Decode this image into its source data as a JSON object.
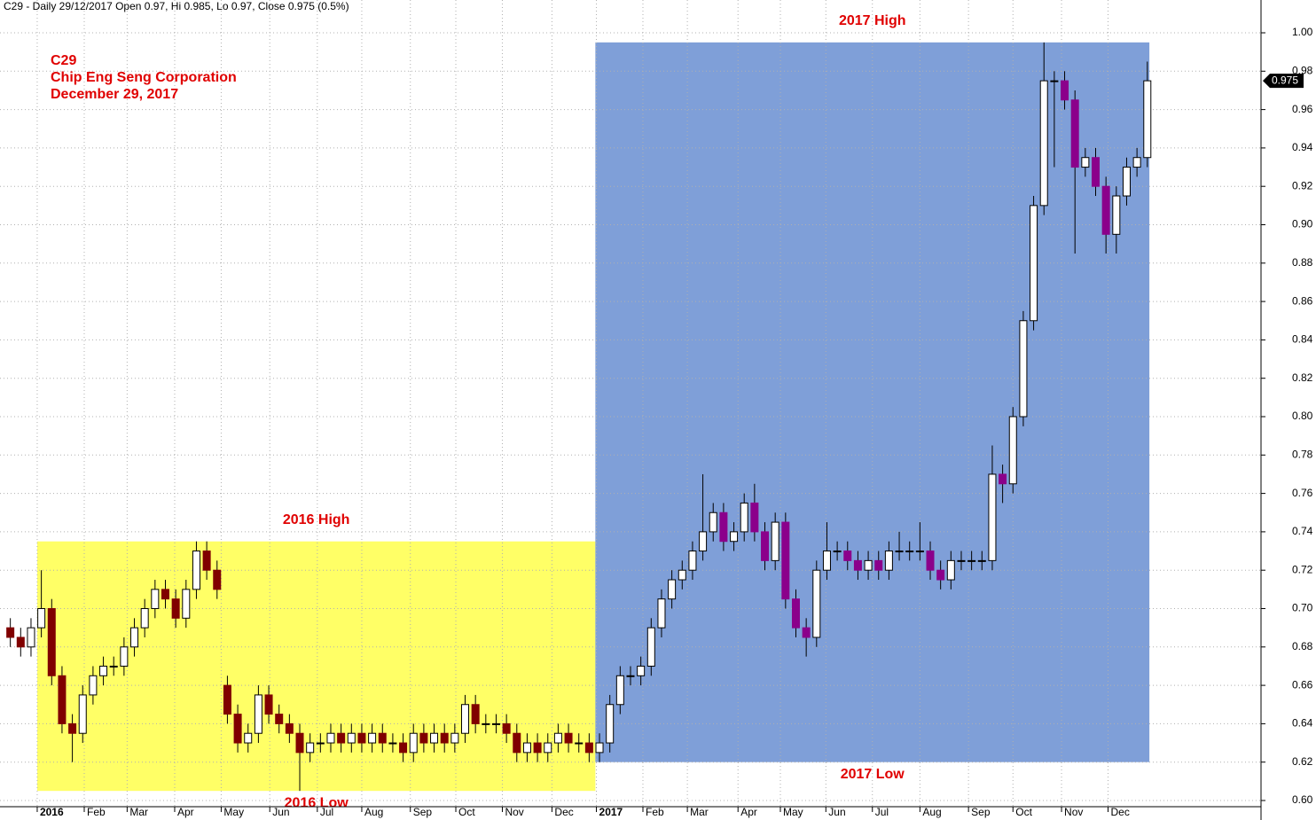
{
  "header": "C29 - Daily 29/12/2017 Open 0.97, Hi 0.985, Lo 0.97, Close 0.975 (0.5%)",
  "chart_data": {
    "type": "candlestick",
    "title_lines": [
      "C29",
      "Chip Eng Seng Corporation",
      "December 29, 2017"
    ],
    "xlim": [
      0,
      122
    ],
    "xticks": [
      {
        "value": 3.6,
        "label": "2016",
        "bold": true
      },
      {
        "value": 8.15,
        "label": "Feb"
      },
      {
        "value": 12.3,
        "label": "Mar"
      },
      {
        "value": 16.9,
        "label": "Apr"
      },
      {
        "value": 21.4,
        "label": "May"
      },
      {
        "value": 26.1,
        "label": "Jun"
      },
      {
        "value": 30.7,
        "label": "Jul"
      },
      {
        "value": 35,
        "label": "Aug"
      },
      {
        "value": 39.7,
        "label": "Sep"
      },
      {
        "value": 44.1,
        "label": "Oct"
      },
      {
        "value": 48.6,
        "label": "Nov"
      },
      {
        "value": 53.4,
        "label": "Dec"
      },
      {
        "value": 57.7,
        "label": "2017",
        "bold": true
      },
      {
        "value": 62.2,
        "label": "Feb"
      },
      {
        "value": 66.5,
        "label": "Mar"
      },
      {
        "value": 71.4,
        "label": "Apr"
      },
      {
        "value": 75.5,
        "label": "May"
      },
      {
        "value": 79.9,
        "label": "Jun"
      },
      {
        "value": 84.4,
        "label": "Jul"
      },
      {
        "value": 89,
        "label": "Aug"
      },
      {
        "value": 93.7,
        "label": "Sep"
      },
      {
        "value": 98,
        "label": "Oct"
      },
      {
        "value": 102.7,
        "label": "Nov"
      },
      {
        "value": 107.2,
        "label": "Dec"
      }
    ],
    "ylim": [
      0.6,
      1.0
    ],
    "yticks": [
      {
        "value": 0.6,
        "label": "0.60"
      },
      0.62,
      0.64,
      0.66,
      0.68,
      {
        "value": 0.7,
        "label": "0.70"
      },
      0.72,
      0.74,
      0.76,
      0.78,
      {
        "value": 0.8,
        "label": "0.80"
      },
      0.82,
      0.84,
      0.86,
      0.88,
      {
        "value": 0.9,
        "label": "0.90"
      },
      0.92,
      0.94,
      0.96,
      0.98,
      {
        "value": 1.0,
        "label": "1.00"
      }
    ],
    "grid": true,
    "up_color": "#ffffff",
    "series": [
      {
        "color": "#800000",
        "open": [
          0.69,
          0.685,
          0.68,
          0.69,
          0.7,
          0.665,
          0.64,
          0.635,
          0.655,
          0.665,
          0.67,
          0.67,
          0.68,
          0.69,
          0.7,
          0.71,
          0.705,
          0.695,
          0.71,
          0.73,
          0.72,
          0.66,
          0.645,
          0.63,
          0.635,
          0.655,
          0.645,
          0.64,
          0.635,
          0.625,
          0.63,
          0.63,
          0.635,
          0.63,
          0.635,
          0.63,
          0.635,
          0.63,
          0.63,
          0.625,
          0.635,
          0.63,
          0.635,
          0.63,
          0.635,
          0.65,
          0.64,
          0.64,
          0.64,
          0.635,
          0.625,
          0.63,
          0.625,
          0.63,
          0.635,
          0.63,
          0.63
        ],
        "high": [
          0.695,
          0.69,
          0.695,
          0.72,
          0.705,
          0.67,
          0.645,
          0.66,
          0.67,
          0.675,
          0.675,
          0.685,
          0.695,
          0.705,
          0.715,
          0.715,
          0.71,
          0.715,
          0.735,
          0.735,
          0.725,
          0.665,
          0.65,
          0.64,
          0.66,
          0.66,
          0.65,
          0.645,
          0.64,
          0.635,
          0.635,
          0.64,
          0.64,
          0.64,
          0.64,
          0.64,
          0.64,
          0.635,
          0.635,
          0.64,
          0.64,
          0.64,
          0.64,
          0.64,
          0.655,
          0.655,
          0.645,
          0.645,
          0.645,
          0.64,
          0.635,
          0.635,
          0.635,
          0.64,
          0.64,
          0.635,
          0.635
        ],
        "low": [
          0.68,
          0.675,
          0.675,
          0.685,
          0.66,
          0.635,
          0.62,
          0.63,
          0.65,
          0.66,
          0.665,
          0.665,
          0.675,
          0.685,
          0.695,
          0.7,
          0.69,
          0.69,
          0.705,
          0.715,
          0.705,
          0.64,
          0.625,
          0.625,
          0.63,
          0.64,
          0.635,
          0.63,
          0.605,
          0.62,
          0.625,
          0.625,
          0.625,
          0.625,
          0.625,
          0.625,
          0.625,
          0.625,
          0.62,
          0.62,
          0.625,
          0.625,
          0.625,
          0.625,
          0.63,
          0.635,
          0.635,
          0.635,
          0.63,
          0.62,
          0.62,
          0.62,
          0.62,
          0.625,
          0.625,
          0.625,
          0.62
        ],
        "close": [
          0.685,
          0.68,
          0.69,
          0.7,
          0.665,
          0.64,
          0.635,
          0.655,
          0.665,
          0.67,
          0.67,
          0.68,
          0.69,
          0.7,
          0.71,
          0.705,
          0.695,
          0.71,
          0.73,
          0.72,
          0.71,
          0.645,
          0.63,
          0.635,
          0.655,
          0.645,
          0.64,
          0.635,
          0.625,
          0.63,
          0.63,
          0.635,
          0.63,
          0.635,
          0.63,
          0.635,
          0.63,
          0.63,
          0.625,
          0.635,
          0.63,
          0.635,
          0.63,
          0.635,
          0.65,
          0.64,
          0.64,
          0.64,
          0.635,
          0.625,
          0.63,
          0.625,
          0.63,
          0.635,
          0.63,
          0.63,
          0.625
        ]
      },
      {
        "color": "#8b008b",
        "open": [
          0.625,
          0.63,
          0.65,
          0.665,
          0.665,
          0.67,
          0.69,
          0.705,
          0.715,
          0.72,
          0.73,
          0.74,
          0.75,
          0.735,
          0.74,
          0.755,
          0.74,
          0.725,
          0.745,
          0.705,
          0.69,
          0.685,
          0.72,
          0.73,
          0.73,
          0.725,
          0.72,
          0.725,
          0.72,
          0.73,
          0.73,
          0.73,
          0.73,
          0.72,
          0.715,
          0.725,
          0.725,
          0.725,
          0.725,
          0.77,
          0.765,
          0.8,
          0.85,
          0.91,
          0.975,
          0.975,
          0.965,
          0.93,
          0.935,
          0.92,
          0.895,
          0.915,
          0.93,
          0.935
        ],
        "high": [
          0.635,
          0.655,
          0.67,
          0.67,
          0.675,
          0.695,
          0.71,
          0.72,
          0.725,
          0.735,
          0.77,
          0.755,
          0.755,
          0.745,
          0.76,
          0.765,
          0.745,
          0.75,
          0.75,
          0.71,
          0.695,
          0.725,
          0.745,
          0.735,
          0.735,
          0.73,
          0.73,
          0.73,
          0.735,
          0.74,
          0.735,
          0.745,
          0.735,
          0.725,
          0.73,
          0.73,
          0.73,
          0.73,
          0.785,
          0.775,
          0.805,
          0.855,
          0.915,
          0.995,
          0.98,
          0.98,
          0.97,
          0.94,
          0.94,
          0.925,
          0.92,
          0.935,
          0.94,
          0.985
        ],
        "low": [
          0.62,
          0.625,
          0.645,
          0.66,
          0.66,
          0.665,
          0.685,
          0.7,
          0.71,
          0.715,
          0.725,
          0.735,
          0.73,
          0.73,
          0.735,
          0.735,
          0.72,
          0.72,
          0.7,
          0.685,
          0.675,
          0.68,
          0.715,
          0.725,
          0.72,
          0.715,
          0.715,
          0.715,
          0.715,
          0.725,
          0.725,
          0.725,
          0.715,
          0.71,
          0.71,
          0.72,
          0.72,
          0.72,
          0.72,
          0.755,
          0.76,
          0.795,
          0.845,
          0.905,
          0.93,
          0.96,
          0.885,
          0.925,
          0.915,
          0.885,
          0.885,
          0.91,
          0.925,
          0.93
        ],
        "close": [
          0.63,
          0.65,
          0.665,
          0.665,
          0.67,
          0.69,
          0.705,
          0.715,
          0.72,
          0.73,
          0.74,
          0.75,
          0.735,
          0.74,
          0.755,
          0.74,
          0.725,
          0.745,
          0.705,
          0.69,
          0.685,
          0.72,
          0.73,
          0.73,
          0.725,
          0.72,
          0.725,
          0.72,
          0.73,
          0.73,
          0.73,
          0.73,
          0.72,
          0.715,
          0.725,
          0.725,
          0.725,
          0.725,
          0.77,
          0.765,
          0.8,
          0.85,
          0.91,
          0.975,
          0.975,
          0.965,
          0.93,
          0.935,
          0.92,
          0.895,
          0.915,
          0.93,
          0.935,
          0.975
        ]
      }
    ],
    "regions": [
      {
        "x": [
          3.6,
          57.6
        ],
        "y": [
          0.605,
          0.735
        ],
        "color": "#ffff66",
        "top_label": "2016 High",
        "bottom_label": "2016 Low"
      },
      {
        "x": [
          57.6,
          111.2
        ],
        "y": [
          0.62,
          0.995
        ],
        "color": "#7f9fd8",
        "top_label": "2017 High",
        "bottom_label": "2017 Low"
      }
    ],
    "last_price": {
      "value": 0.975,
      "label": "0.975"
    }
  }
}
